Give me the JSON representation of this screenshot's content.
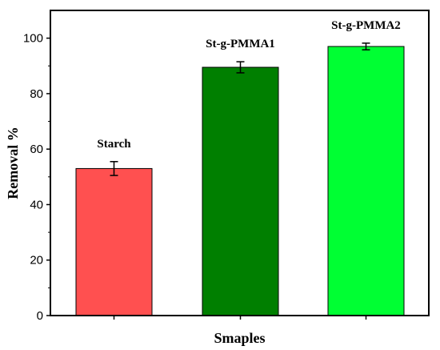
{
  "chart_data": {
    "type": "bar",
    "categories": [
      "Starch",
      "St-g-PMMA1",
      "St-g-PMMA2"
    ],
    "values": [
      53,
      89.5,
      97
    ],
    "errors": [
      2.5,
      2,
      1.2
    ],
    "colors": [
      "#ff5050",
      "#007f00",
      "#00ff33"
    ],
    "xlabel": "Smaples",
    "ylabel": "Removal %",
    "ylim": [
      0,
      110
    ],
    "yticks": [
      "0",
      "20",
      "40",
      "60",
      "80",
      "100"
    ],
    "show_xtick_labels": false,
    "bar_labels_above": true
  }
}
